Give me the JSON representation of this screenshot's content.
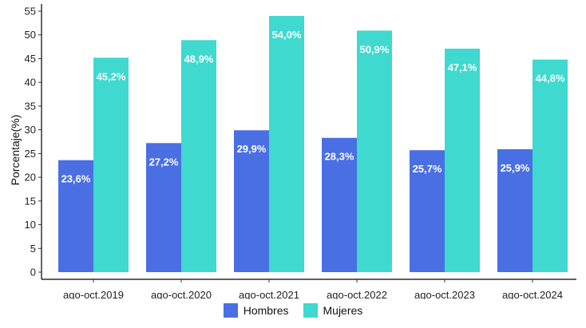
{
  "chart_data": {
    "type": "bar",
    "title": "",
    "xlabel": "",
    "ylabel": "Porcentaje(%)",
    "ylim": [
      0,
      55
    ],
    "yticks": [
      0,
      5,
      10,
      15,
      20,
      25,
      30,
      35,
      40,
      45,
      50,
      55
    ],
    "grid": false,
    "legend_position": "bottom",
    "categories": [
      "ago-oct.2019",
      "ago-oct.2020",
      "ago-oct.2021",
      "ago-oct.2022",
      "ago-oct.2023",
      "ago-oct.2024"
    ],
    "series": [
      {
        "name": "Hombres",
        "color": "#4a6fe3",
        "values": [
          23.6,
          27.2,
          29.9,
          28.3,
          25.7,
          25.9
        ],
        "labels": [
          "23,6%",
          "27,2%",
          "29,9%",
          "28,3%",
          "25,7%",
          "25,9%"
        ]
      },
      {
        "name": "Mujeres",
        "color": "#3fd9cf",
        "values": [
          45.2,
          48.9,
          54.0,
          50.9,
          47.1,
          44.8
        ],
        "labels": [
          "45,2%",
          "48,9%",
          "54,0%",
          "50,9%",
          "47,1%",
          "44,8%"
        ]
      }
    ]
  }
}
